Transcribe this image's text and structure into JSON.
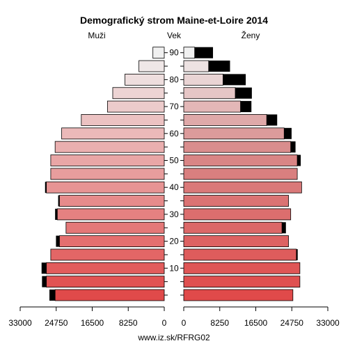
{
  "chart_data": {
    "type": "bar",
    "orientation": "horizontal",
    "title": "Demografický strom Maine-et-Loire 2014",
    "left_label": "Muži",
    "center_label": "Vek",
    "right_label": "Ženy",
    "footer": "www.iz.sk/RFRG02",
    "age_groups": [
      "0-4",
      "5-9",
      "10-14",
      "15-19",
      "20-24",
      "25-29",
      "30-34",
      "35-39",
      "40-44",
      "45-49",
      "50-54",
      "55-59",
      "60-64",
      "65-69",
      "70-74",
      "75-79",
      "80-84",
      "85-89",
      "90+"
    ],
    "age_tick_labels": [
      "10",
      "20",
      "30",
      "40",
      "50",
      "60",
      "70",
      "80",
      "90"
    ],
    "x_tick_labels_left": [
      "33000",
      "24750",
      "16500",
      "8250",
      "0"
    ],
    "x_tick_labels_right": [
      "0",
      "8250",
      "16500",
      "24750",
      "33000"
    ],
    "xlim": [
      0,
      33000
    ],
    "series": [
      {
        "name": "Muži",
        "values": [
          25000,
          27000,
          27000,
          26000,
          24000,
          22500,
          24500,
          24000,
          27000,
          26000,
          26000,
          25000,
          23500,
          19000,
          13000,
          11800,
          9000,
          5800,
          2600
        ]
      },
      {
        "name": "Muži - prebytok",
        "values": [
          1300,
          1000,
          1100,
          0,
          800,
          0,
          500,
          300,
          300,
          0,
          0,
          0,
          0,
          0,
          0,
          0,
          0,
          0,
          0
        ]
      },
      {
        "name": "Ženy",
        "values": [
          25000,
          26600,
          26600,
          25800,
          24000,
          22500,
          24500,
          24000,
          27000,
          26000,
          26000,
          24500,
          23000,
          19000,
          13000,
          11800,
          9000,
          5700,
          2500
        ]
      },
      {
        "name": "Ženy - prebytok",
        "values": [
          0,
          0,
          0,
          300,
          0,
          900,
          0,
          0,
          0,
          0,
          800,
          1100,
          1700,
          2400,
          2500,
          3800,
          5200,
          4900,
          4200
        ]
      }
    ],
    "colors": {
      "excess": "#000000",
      "bar_bottom": "#e04a4a",
      "bar_top": "#f0f0f0",
      "female_mid": "#d88a8a"
    }
  }
}
